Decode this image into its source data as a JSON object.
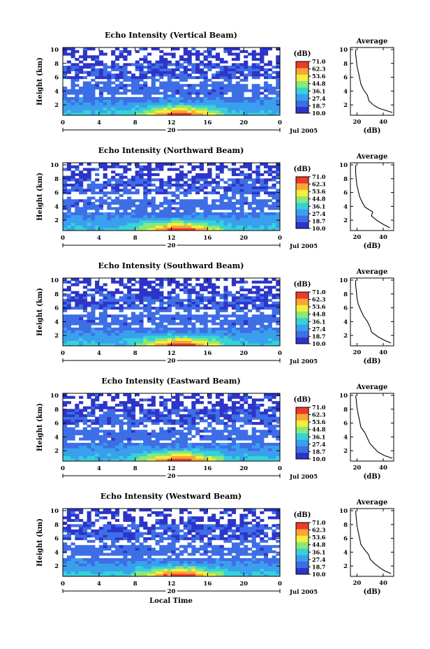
{
  "chart_data": [
    {
      "type": "heatmap",
      "title": "Echo Intensity (Vertical Beam)",
      "ylabel": "Height (km)",
      "xticks": [
        "0",
        "4",
        "8",
        "12",
        "16",
        "20",
        "0"
      ],
      "yticks": [
        "2",
        "4",
        "6",
        "8",
        "10"
      ],
      "date_label": "20",
      "date_right": "Jul 2005",
      "colorbar": {
        "unit": "(dB)",
        "ticks": [
          "71.0",
          "62.3",
          "53.6",
          "44.8",
          "36.1",
          "27.4",
          "18.7",
          "10.0"
        ]
      },
      "average": {
        "title": "Average",
        "xlabel": "(dB)",
        "xticks": [
          "20",
          "40"
        ],
        "yticks": [
          "2",
          "4",
          "6",
          "8",
          "10"
        ],
        "xlim": [
          15,
          48
        ],
        "ylim": [
          0.5,
          10.3
        ],
        "profile": [
          [
            47,
            0.9
          ],
          [
            42,
            1.2
          ],
          [
            37,
            1.5
          ],
          [
            33,
            1.9
          ],
          [
            29,
            2.6
          ],
          [
            28,
            3.4
          ],
          [
            25,
            4.2
          ],
          [
            23,
            5.0
          ],
          [
            22,
            5.9
          ],
          [
            21,
            6.8
          ],
          [
            20,
            7.6
          ],
          [
            19.5,
            8.5
          ],
          [
            19,
            9.3
          ],
          [
            19,
            10
          ]
        ]
      }
    },
    {
      "type": "heatmap",
      "title": "Echo Intensity (Northward Beam)",
      "ylabel": "Height (km)",
      "xticks": [
        "0",
        "4",
        "8",
        "12",
        "16",
        "20",
        "0"
      ],
      "yticks": [
        "2",
        "4",
        "6",
        "8",
        "10"
      ],
      "date_label": "20",
      "date_right": "Jul 2005",
      "colorbar": {
        "unit": "(dB)",
        "ticks": [
          "71.0",
          "62.3",
          "53.6",
          "44.8",
          "36.1",
          "27.4",
          "18.7",
          "10.0"
        ]
      },
      "average": {
        "title": "Average",
        "xlabel": "(dB)",
        "xticks": [
          "20",
          "40"
        ],
        "yticks": [
          "2",
          "4",
          "6",
          "8",
          "10"
        ],
        "xlim": [
          15,
          48
        ],
        "ylim": [
          0.5,
          10.3
        ],
        "profile": [
          [
            45,
            0.9
          ],
          [
            40,
            1.4
          ],
          [
            35,
            2.0
          ],
          [
            31,
            2.6
          ],
          [
            32,
            3.2
          ],
          [
            26,
            3.9
          ],
          [
            24,
            4.6
          ],
          [
            22,
            5.4
          ],
          [
            21,
            6.2
          ],
          [
            20,
            7.0
          ],
          [
            19.5,
            7.8
          ],
          [
            19,
            8.8
          ],
          [
            19,
            10
          ]
        ]
      }
    },
    {
      "type": "heatmap",
      "title": "Echo Intensity (Southward Beam)",
      "ylabel": "Height (km)",
      "xticks": [
        "0",
        "4",
        "8",
        "12",
        "16",
        "20",
        "0"
      ],
      "yticks": [
        "2",
        "4",
        "6",
        "8",
        "10"
      ],
      "date_label": "20",
      "date_right": "Jul 2005",
      "colorbar": {
        "unit": "(dB)",
        "ticks": [
          "71.0",
          "62.3",
          "53.6",
          "44.8",
          "36.1",
          "27.4",
          "18.7",
          "10.0"
        ]
      },
      "average": {
        "title": "Average",
        "xlabel": "(dB)",
        "xticks": [
          "20",
          "40"
        ],
        "yticks": [
          "2",
          "4",
          "6",
          "8",
          "10"
        ],
        "xlim": [
          15,
          48
        ],
        "ylim": [
          0.5,
          10.3
        ],
        "profile": [
          [
            46,
            0.9
          ],
          [
            41,
            1.3
          ],
          [
            36,
            1.8
          ],
          [
            31,
            2.5
          ],
          [
            30,
            3.2
          ],
          [
            28,
            4.0
          ],
          [
            25,
            4.8
          ],
          [
            23,
            5.6
          ],
          [
            21,
            6.5
          ],
          [
            20,
            7.4
          ],
          [
            19.5,
            8.4
          ],
          [
            19,
            9.3
          ],
          [
            19,
            10
          ]
        ]
      }
    },
    {
      "type": "heatmap",
      "title": "Echo Intensity (Eastward Beam)",
      "ylabel": "Height (km)",
      "xticks": [
        "0",
        "4",
        "8",
        "12",
        "16",
        "20",
        "0"
      ],
      "yticks": [
        "2",
        "4",
        "6",
        "8",
        "10"
      ],
      "date_label": "20",
      "date_right": "Jul 2005",
      "colorbar": {
        "unit": "(dB)",
        "ticks": [
          "71.0",
          "62.3",
          "53.6",
          "44.8",
          "36.1",
          "27.4",
          "18.7",
          "10.0"
        ]
      },
      "average": {
        "title": "Average",
        "xlabel": "(dB)",
        "xticks": [
          "20",
          "40"
        ],
        "yticks": [
          "2",
          "4",
          "6",
          "8",
          "10"
        ],
        "xlim": [
          15,
          48
        ],
        "ylim": [
          0.5,
          10.3
        ],
        "profile": [
          [
            47,
            0.9
          ],
          [
            41,
            1.3
          ],
          [
            36,
            1.8
          ],
          [
            33,
            2.4
          ],
          [
            30,
            3.0
          ],
          [
            28,
            3.8
          ],
          [
            26,
            4.6
          ],
          [
            23,
            5.4
          ],
          [
            22,
            6.3
          ],
          [
            21,
            7.2
          ],
          [
            20,
            8.2
          ],
          [
            19.5,
            9.2
          ],
          [
            19,
            10
          ]
        ]
      }
    },
    {
      "type": "heatmap",
      "title": "Echo Intensity (Westward Beam)",
      "ylabel": "Height (km)",
      "xticks": [
        "0",
        "4",
        "8",
        "12",
        "16",
        "20",
        "0"
      ],
      "yticks": [
        "2",
        "4",
        "6",
        "8",
        "10"
      ],
      "date_label": "20",
      "date_right": "Jul 2005",
      "xlabel": "Local Time",
      "colorbar": {
        "unit": "(dB)",
        "ticks": [
          "71.0",
          "62.3",
          "53.6",
          "44.8",
          "36.1",
          "27.4",
          "18.7",
          "10.0"
        ]
      },
      "average": {
        "title": "Average",
        "xlabel": "(dB)",
        "xticks": [
          "20",
          "40"
        ],
        "yticks": [
          "2",
          "4",
          "6",
          "8",
          "10"
        ],
        "xlim": [
          15,
          48
        ],
        "ylim": [
          0.5,
          10.3
        ],
        "profile": [
          [
            46,
            0.9
          ],
          [
            41,
            1.3
          ],
          [
            37,
            1.8
          ],
          [
            33,
            2.4
          ],
          [
            30,
            3.0
          ],
          [
            29,
            3.6
          ],
          [
            26,
            4.3
          ],
          [
            23,
            5.1
          ],
          [
            22,
            6.0
          ],
          [
            21,
            6.9
          ],
          [
            20,
            7.8
          ],
          [
            19.5,
            8.8
          ],
          [
            19,
            10
          ]
        ]
      }
    }
  ],
  "colors": {
    "scale": [
      "#2d35c8",
      "#3e6ee6",
      "#3aa0ee",
      "#35d3d8",
      "#8be878",
      "#f4ee3c",
      "#f8a636",
      "#ee3a28"
    ]
  }
}
